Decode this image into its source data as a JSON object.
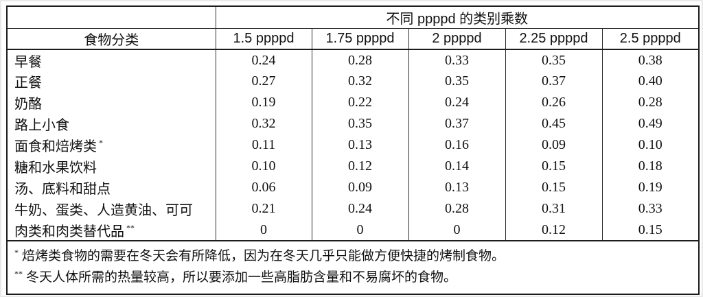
{
  "table": {
    "title": "不同 ppppd 的类别乘数",
    "category_header": "食物分类",
    "column_headers": [
      "1.5 ppppd",
      "1.75 ppppd",
      "2 ppppd",
      "2.25 ppppd",
      "2.5 ppppd"
    ],
    "rows": [
      {
        "label": "早餐",
        "marker": "",
        "values": [
          "0.24",
          "0.28",
          "0.33",
          "0.35",
          "0.38"
        ]
      },
      {
        "label": "正餐",
        "marker": "",
        "values": [
          "0.27",
          "0.32",
          "0.35",
          "0.37",
          "0.40"
        ]
      },
      {
        "label": "奶酪",
        "marker": "",
        "values": [
          "0.19",
          "0.22",
          "0.24",
          "0.26",
          "0.28"
        ]
      },
      {
        "label": "路上小食",
        "marker": "",
        "values": [
          "0.32",
          "0.35",
          "0.37",
          "0.45",
          "0.49"
        ]
      },
      {
        "label": "面食和焙烤类",
        "marker": "*",
        "values": [
          "0.11",
          "0.13",
          "0.16",
          "0.09",
          "0.10"
        ]
      },
      {
        "label": "糖和水果饮料",
        "marker": "",
        "values": [
          "0.10",
          "0.12",
          "0.14",
          "0.15",
          "0.18"
        ]
      },
      {
        "label": "汤、底料和甜点",
        "marker": "",
        "values": [
          "0.06",
          "0.09",
          "0.13",
          "0.15",
          "0.19"
        ]
      },
      {
        "label": "牛奶、蛋类、人造黄油、可可",
        "marker": "",
        "values": [
          "0.21",
          "0.24",
          "0.28",
          "0.31",
          "0.33"
        ]
      },
      {
        "label": "肉类和肉类替代品",
        "marker": "**",
        "values": [
          "0",
          "0",
          "0",
          "0.12",
          "0.15"
        ]
      }
    ]
  },
  "footnotes": [
    {
      "marker": "*",
      "text": "焙烤类食物的需要在冬天会有所降低，因为在冬天几乎只能做方便快捷的烤制食物。"
    },
    {
      "marker": "**",
      "text": "冬天人体所需的热量较高，所以要添加一些高脂肪含量和不易腐坏的食物。"
    }
  ],
  "colors": {
    "outer_border": "#1c1c1c",
    "grid_line": "#2a2a2a",
    "text": "#111111",
    "background": "#ffffff"
  }
}
